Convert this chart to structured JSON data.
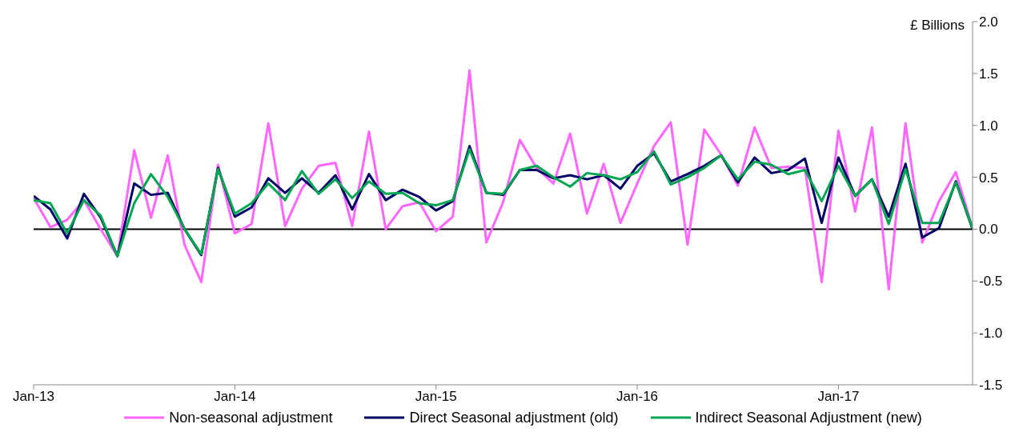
{
  "chart_data": {
    "type": "line",
    "ylabel": "£ Billions",
    "x": [
      "2013-01",
      "2013-02",
      "2013-03",
      "2013-04",
      "2013-05",
      "2013-06",
      "2013-07",
      "2013-08",
      "2013-09",
      "2013-10",
      "2013-11",
      "2013-12",
      "2014-01",
      "2014-02",
      "2014-03",
      "2014-04",
      "2014-05",
      "2014-06",
      "2014-07",
      "2014-08",
      "2014-09",
      "2014-10",
      "2014-11",
      "2014-12",
      "2015-01",
      "2015-02",
      "2015-03",
      "2015-04",
      "2015-05",
      "2015-06",
      "2015-07",
      "2015-08",
      "2015-09",
      "2015-10",
      "2015-11",
      "2015-12",
      "2016-01",
      "2016-02",
      "2016-03",
      "2016-04",
      "2016-05",
      "2016-06",
      "2016-07",
      "2016-08",
      "2016-09",
      "2016-10",
      "2016-11",
      "2016-12",
      "2017-01",
      "2017-02",
      "2017-03",
      "2017-04",
      "2017-05",
      "2017-06",
      "2017-07",
      "2017-08",
      "2017-09"
    ],
    "series": [
      {
        "name": "Non-seasonal adjustment",
        "color": "#ff66ff",
        "values": [
          0.3,
          0.02,
          0.09,
          0.28,
          0.0,
          -0.26,
          0.76,
          0.11,
          0.71,
          -0.15,
          -0.51,
          0.62,
          -0.04,
          0.05,
          1.02,
          0.03,
          0.39,
          0.61,
          0.64,
          0.03,
          0.94,
          0.0,
          0.22,
          0.26,
          -0.02,
          0.12,
          1.53,
          -0.13,
          0.26,
          0.86,
          0.59,
          0.44,
          0.92,
          0.15,
          0.63,
          0.06,
          0.44,
          0.8,
          1.03,
          -0.15,
          0.96,
          0.72,
          0.42,
          0.98,
          0.59,
          0.6,
          0.59,
          -0.51,
          0.95,
          0.17,
          0.98,
          -0.58,
          1.02,
          -0.13,
          0.27,
          0.55,
          0.01
        ]
      },
      {
        "name": "Direct Seasonal adjustment (old)",
        "color": "#000066",
        "values": [
          0.32,
          0.19,
          -0.09,
          0.34,
          0.11,
          -0.26,
          0.44,
          0.33,
          0.35,
          0.0,
          -0.25,
          0.59,
          0.12,
          0.21,
          0.49,
          0.35,
          0.49,
          0.35,
          0.52,
          0.19,
          0.53,
          0.28,
          0.38,
          0.31,
          0.18,
          0.27,
          0.8,
          0.35,
          0.33,
          0.57,
          0.57,
          0.49,
          0.52,
          0.48,
          0.52,
          0.39,
          0.61,
          0.73,
          0.46,
          0.53,
          0.61,
          0.71,
          0.45,
          0.69,
          0.54,
          0.57,
          0.68,
          0.06,
          0.69,
          0.32,
          0.48,
          0.12,
          0.63,
          -0.08,
          0.01,
          0.46,
          0.0
        ]
      },
      {
        "name": "Indirect Seasonal Adjustment (new)",
        "color": "#00a651",
        "values": [
          0.28,
          0.25,
          -0.04,
          0.28,
          0.13,
          -0.26,
          0.25,
          0.53,
          0.31,
          0.0,
          -0.24,
          0.58,
          0.15,
          0.25,
          0.44,
          0.28,
          0.56,
          0.34,
          0.48,
          0.3,
          0.46,
          0.34,
          0.35,
          0.25,
          0.23,
          0.28,
          0.77,
          0.35,
          0.34,
          0.57,
          0.61,
          0.5,
          0.41,
          0.54,
          0.52,
          0.48,
          0.55,
          0.75,
          0.43,
          0.5,
          0.59,
          0.71,
          0.48,
          0.65,
          0.62,
          0.53,
          0.57,
          0.27,
          0.61,
          0.32,
          0.48,
          0.05,
          0.58,
          0.06,
          0.06,
          0.45,
          0.01
        ]
      }
    ],
    "xlim": [
      "2013-01",
      "2017-09"
    ],
    "xticks": [
      {
        "value": "2013-01",
        "label": "Jan-13"
      },
      {
        "value": "2014-01",
        "label": "Jan-14"
      },
      {
        "value": "2015-01",
        "label": "Jan-15"
      },
      {
        "value": "2016-01",
        "label": "Jan-16"
      },
      {
        "value": "2017-01",
        "label": "Jan-17"
      }
    ],
    "ylim": [
      -1.5,
      2.0
    ],
    "yticks": [
      {
        "value": -1.5,
        "label": "-1.5"
      },
      {
        "value": -1,
        "label": "-1.0"
      },
      -0.5,
      {
        "value": 0,
        "label": "0.0"
      },
      0.5,
      {
        "value": 1,
        "label": "1.0"
      },
      1.5,
      {
        "value": 2,
        "label": "2.0"
      }
    ],
    "ref_lines": [
      {
        "axis": "y",
        "value": 0,
        "color": "#000000"
      }
    ],
    "grid": false,
    "legend": "bottom",
    "marker": "none",
    "line_style": "solid"
  }
}
